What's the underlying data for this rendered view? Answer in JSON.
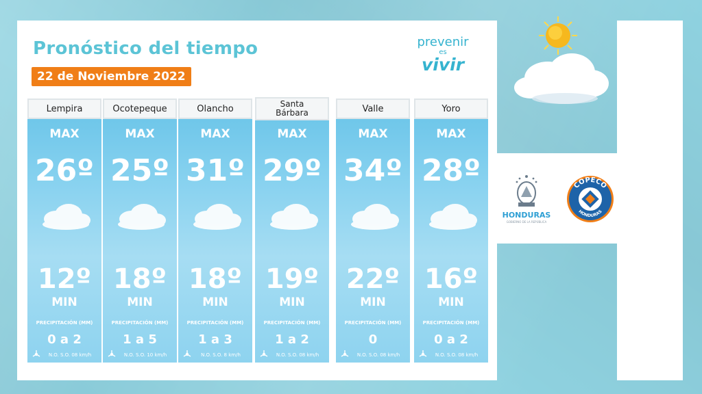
{
  "title": "Pronóstico del tiempo",
  "date": "22 de Noviembre 2022",
  "brand": {
    "line1": "prevenir",
    "line2": "es",
    "line3": "vivir"
  },
  "labels": {
    "max": "MAX",
    "min": "MIN",
    "precip": "PRECIPITACIÓN (MM)"
  },
  "cities": [
    {
      "name": "Lempira",
      "max": "26º",
      "min": "12º",
      "precip": "0 a 2",
      "wind": "N.O.  S.O.  08 km/h"
    },
    {
      "name": "Ocotepeque",
      "max": "25º",
      "min": "18º",
      "precip": "1 a 5",
      "wind": "N.O.  S.O.  10  km/h"
    },
    {
      "name": "Olancho",
      "max": "31º",
      "min": "18º",
      "precip": "1 a 3",
      "wind": "N.O.  S.O.  8 km/h"
    },
    {
      "name": "Santa Bárbara",
      "max": "29º",
      "min": "19º",
      "precip": "1 a 2",
      "wind": "N.O.  S.O.  08 km/h"
    },
    {
      "name": "Valle",
      "max": "34º",
      "min": "22º",
      "precip": "0",
      "wind": "N.O.  S.O.  08 km/h"
    },
    {
      "name": "Yoro",
      "max": "28º",
      "min": "16º",
      "precip": "0 a 2",
      "wind": "N.O.  S.O.  08 km/h"
    }
  ],
  "logos": {
    "honduras": "HONDURAS",
    "honduras_sub": "GOBIERNO DE LA REPÚBLICA",
    "copeco_top": "COPECO",
    "copeco_bottom": "HONDURAS"
  },
  "colors": {
    "accent": "#5cc4d6",
    "badge": "#f07e17",
    "card": "#86d1ef",
    "background": "#8fd2e0",
    "copeco_blue": "#1e63a8",
    "copeco_orange": "#f07e17"
  },
  "icons": [
    "sun-icon",
    "cloud-icon",
    "wind-icon",
    "coat-of-arms-icon",
    "copeco-logo-icon"
  ]
}
